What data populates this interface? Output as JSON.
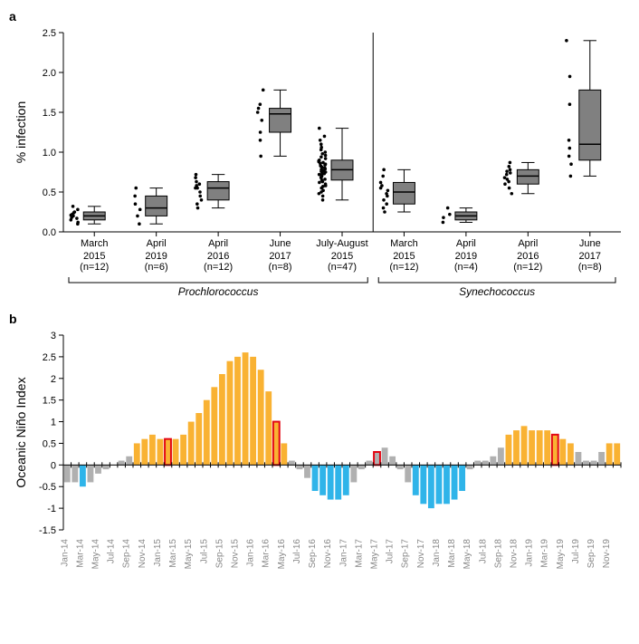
{
  "panel_a": {
    "label": "a",
    "type": "boxplot",
    "ylabel": "% infection",
    "ylim": [
      0,
      2.5
    ],
    "ytick_step": 0.5,
    "box_fill": "#808080",
    "box_stroke": "#000000",
    "whisker_stroke": "#000000",
    "point_fill": "#000000",
    "background": "#ffffff",
    "label_fontsize": 11,
    "axis_title_fontsize": 14,
    "groups": [
      {
        "name": "Prochlorococcus",
        "start": 0,
        "end": 5
      },
      {
        "name": "Synechococcus",
        "start": 5,
        "end": 9
      }
    ],
    "categories": [
      {
        "line1": "March",
        "line2": "2015",
        "n": "(n=12)",
        "q1": 0.15,
        "median": 0.2,
        "q3": 0.25,
        "wlo": 0.1,
        "whi": 0.32,
        "points": [
          0.1,
          0.12,
          0.15,
          0.17,
          0.18,
          0.2,
          0.21,
          0.22,
          0.24,
          0.25,
          0.28,
          0.32
        ]
      },
      {
        "line1": "April",
        "line2": "2019",
        "n": "(n=6)",
        "q1": 0.2,
        "median": 0.3,
        "q3": 0.45,
        "wlo": 0.1,
        "whi": 0.55,
        "points": [
          0.1,
          0.2,
          0.28,
          0.35,
          0.45,
          0.55
        ]
      },
      {
        "line1": "April",
        "line2": "2016",
        "n": "(n=12)",
        "q1": 0.4,
        "median": 0.55,
        "q3": 0.63,
        "wlo": 0.3,
        "whi": 0.72,
        "points": [
          0.3,
          0.35,
          0.4,
          0.45,
          0.5,
          0.55,
          0.55,
          0.58,
          0.6,
          0.63,
          0.68,
          0.72
        ]
      },
      {
        "line1": "June",
        "line2": "2017",
        "n": "(n=8)",
        "q1": 1.25,
        "median": 1.48,
        "q3": 1.55,
        "wlo": 0.95,
        "whi": 1.78,
        "points": [
          0.95,
          1.15,
          1.25,
          1.4,
          1.5,
          1.55,
          1.6,
          1.78
        ]
      },
      {
        "line1": "July-August",
        "line2": "2015",
        "n": "(n=47)",
        "q1": 0.65,
        "median": 0.78,
        "q3": 0.9,
        "wlo": 0.4,
        "whi": 1.3,
        "points": [
          0.4,
          0.45,
          0.48,
          0.5,
          0.52,
          0.55,
          0.57,
          0.58,
          0.6,
          0.62,
          0.63,
          0.65,
          0.66,
          0.68,
          0.69,
          0.7,
          0.71,
          0.72,
          0.73,
          0.74,
          0.75,
          0.76,
          0.77,
          0.78,
          0.79,
          0.8,
          0.81,
          0.82,
          0.83,
          0.84,
          0.85,
          0.86,
          0.87,
          0.88,
          0.89,
          0.9,
          0.92,
          0.94,
          0.96,
          0.98,
          1.0,
          1.03,
          1.06,
          1.1,
          1.15,
          1.2,
          1.3
        ]
      },
      {
        "line1": "March",
        "line2": "2015",
        "n": "(n=12)",
        "q1": 0.35,
        "median": 0.5,
        "q3": 0.62,
        "wlo": 0.25,
        "whi": 0.78,
        "points": [
          0.25,
          0.3,
          0.35,
          0.4,
          0.45,
          0.48,
          0.52,
          0.55,
          0.58,
          0.62,
          0.7,
          0.78
        ]
      },
      {
        "line1": "April",
        "line2": "2019",
        "n": "(n=4)",
        "q1": 0.15,
        "median": 0.2,
        "q3": 0.25,
        "wlo": 0.12,
        "whi": 0.3,
        "points": [
          0.12,
          0.18,
          0.22,
          0.3
        ]
      },
      {
        "line1": "April",
        "line2": "2016",
        "n": "(n=12)",
        "q1": 0.6,
        "median": 0.7,
        "q3": 0.78,
        "wlo": 0.48,
        "whi": 0.87,
        "points": [
          0.48,
          0.55,
          0.6,
          0.63,
          0.66,
          0.68,
          0.72,
          0.74,
          0.76,
          0.78,
          0.82,
          0.87
        ]
      },
      {
        "line1": "June",
        "line2": "2017",
        "n": "(n=8)",
        "q1": 0.9,
        "median": 1.1,
        "q3": 1.78,
        "wlo": 0.7,
        "whi": 2.4,
        "points": [
          0.7,
          0.85,
          0.95,
          1.05,
          1.15,
          1.6,
          1.95,
          2.4
        ]
      }
    ]
  },
  "panel_b": {
    "label": "b",
    "type": "bar",
    "ylabel": "Oceanic Niño Index",
    "ylim": [
      -1.5,
      3
    ],
    "ytick_step": 0.5,
    "background": "#ffffff",
    "colors": {
      "warm": "#f9b233",
      "cold": "#2fb4e9",
      "neutral": "#b0b0b0",
      "highlight": "#e30613"
    },
    "label_fontsize": 10,
    "axis_title_fontsize": 14,
    "xlabels": [
      "Jan-14",
      "Mar-14",
      "May-14",
      "Jul-14",
      "Sep-14",
      "Nov-14",
      "Jan-15",
      "Mar-15",
      "May-15",
      "Jul-15",
      "Sep-15",
      "Nov-15",
      "Jan-16",
      "Mar-16",
      "May-16",
      "Jul-16",
      "Sep-16",
      "Nov-16",
      "Jan-17",
      "Mar-17",
      "May-17",
      "Jul-17",
      "Sep-17",
      "Nov-17",
      "Jan-18",
      "Mar-18",
      "May-18",
      "Jul-18",
      "Sep-18",
      "Nov-18",
      "Jan-19",
      "Mar-19",
      "May-19",
      "Jul-19",
      "Sep-19",
      "Nov-19"
    ],
    "bars": [
      {
        "v": -0.4,
        "c": "neutral"
      },
      {
        "v": -0.4,
        "c": "neutral"
      },
      {
        "v": -0.5,
        "c": "cold"
      },
      {
        "v": -0.4,
        "c": "neutral"
      },
      {
        "v": -0.2,
        "c": "neutral"
      },
      {
        "v": -0.1,
        "c": "neutral"
      },
      {
        "v": 0.0,
        "c": "neutral"
      },
      {
        "v": 0.1,
        "c": "neutral"
      },
      {
        "v": 0.2,
        "c": "neutral"
      },
      {
        "v": 0.5,
        "c": "warm"
      },
      {
        "v": 0.6,
        "c": "warm"
      },
      {
        "v": 0.7,
        "c": "warm"
      },
      {
        "v": 0.6,
        "c": "warm"
      },
      {
        "v": 0.6,
        "c": "warm",
        "hl": true
      },
      {
        "v": 0.6,
        "c": "warm"
      },
      {
        "v": 0.7,
        "c": "warm"
      },
      {
        "v": 1.0,
        "c": "warm"
      },
      {
        "v": 1.2,
        "c": "warm"
      },
      {
        "v": 1.5,
        "c": "warm"
      },
      {
        "v": 1.8,
        "c": "warm"
      },
      {
        "v": 2.1,
        "c": "warm"
      },
      {
        "v": 2.4,
        "c": "warm"
      },
      {
        "v": 2.5,
        "c": "warm"
      },
      {
        "v": 2.6,
        "c": "warm"
      },
      {
        "v": 2.5,
        "c": "warm"
      },
      {
        "v": 2.2,
        "c": "warm"
      },
      {
        "v": 1.7,
        "c": "warm"
      },
      {
        "v": 1.0,
        "c": "warm",
        "hl": true
      },
      {
        "v": 0.5,
        "c": "warm"
      },
      {
        "v": 0.1,
        "c": "neutral"
      },
      {
        "v": -0.1,
        "c": "neutral"
      },
      {
        "v": -0.3,
        "c": "neutral"
      },
      {
        "v": -0.6,
        "c": "cold"
      },
      {
        "v": -0.7,
        "c": "cold"
      },
      {
        "v": -0.8,
        "c": "cold"
      },
      {
        "v": -0.8,
        "c": "cold"
      },
      {
        "v": -0.7,
        "c": "cold"
      },
      {
        "v": -0.4,
        "c": "neutral"
      },
      {
        "v": -0.1,
        "c": "neutral"
      },
      {
        "v": 0.1,
        "c": "neutral"
      },
      {
        "v": 0.3,
        "c": "neutral",
        "hl": true
      },
      {
        "v": 0.4,
        "c": "neutral"
      },
      {
        "v": 0.2,
        "c": "neutral"
      },
      {
        "v": -0.1,
        "c": "neutral"
      },
      {
        "v": -0.4,
        "c": "neutral"
      },
      {
        "v": -0.7,
        "c": "cold"
      },
      {
        "v": -0.9,
        "c": "cold"
      },
      {
        "v": -1.0,
        "c": "cold"
      },
      {
        "v": -0.9,
        "c": "cold"
      },
      {
        "v": -0.9,
        "c": "cold"
      },
      {
        "v": -0.8,
        "c": "cold"
      },
      {
        "v": -0.6,
        "c": "cold"
      },
      {
        "v": -0.1,
        "c": "neutral"
      },
      {
        "v": 0.1,
        "c": "neutral"
      },
      {
        "v": 0.1,
        "c": "neutral"
      },
      {
        "v": 0.2,
        "c": "neutral"
      },
      {
        "v": 0.4,
        "c": "neutral"
      },
      {
        "v": 0.7,
        "c": "warm"
      },
      {
        "v": 0.8,
        "c": "warm"
      },
      {
        "v": 0.9,
        "c": "warm"
      },
      {
        "v": 0.8,
        "c": "warm"
      },
      {
        "v": 0.8,
        "c": "warm"
      },
      {
        "v": 0.8,
        "c": "warm"
      },
      {
        "v": 0.7,
        "c": "warm",
        "hl": true
      },
      {
        "v": 0.6,
        "c": "warm"
      },
      {
        "v": 0.5,
        "c": "warm"
      },
      {
        "v": 0.3,
        "c": "neutral"
      },
      {
        "v": 0.1,
        "c": "neutral"
      },
      {
        "v": 0.1,
        "c": "neutral"
      },
      {
        "v": 0.3,
        "c": "neutral"
      },
      {
        "v": 0.5,
        "c": "warm"
      },
      {
        "v": 0.5,
        "c": "warm"
      }
    ]
  }
}
